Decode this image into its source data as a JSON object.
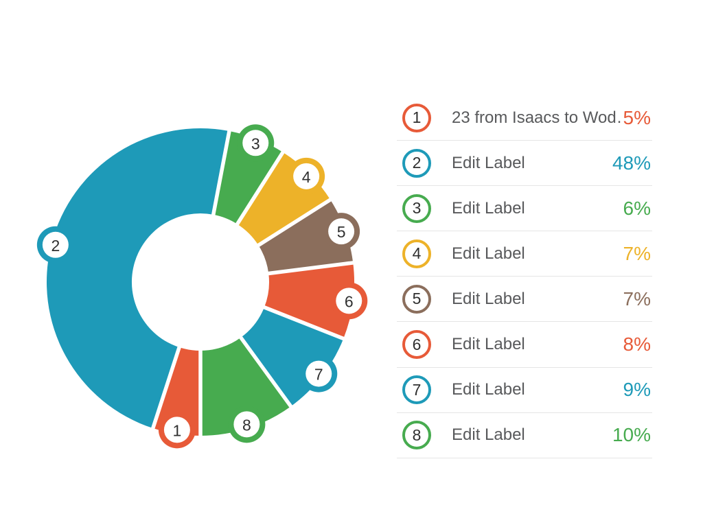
{
  "app": {
    "background_color": "#ffffff"
  },
  "legend": {
    "divider_color": "#e5e5e5",
    "label_color": "#58595b",
    "number_color": "#2f2f2f",
    "rows": [
      {
        "num": "1",
        "label": "23 from Isaacs to Wod…",
        "percent": "5%",
        "color": "#e75a38"
      },
      {
        "num": "2",
        "label": "Edit Label",
        "percent": "48%",
        "color": "#1e9ab8"
      },
      {
        "num": "3",
        "label": "Edit Label",
        "percent": "6%",
        "color": "#47ab4f"
      },
      {
        "num": "4",
        "label": "Edit Label",
        "percent": "7%",
        "color": "#edb229"
      },
      {
        "num": "5",
        "label": "Edit Label",
        "percent": "7%",
        "color": "#8b6e5c"
      },
      {
        "num": "6",
        "label": "Edit Label",
        "percent": "8%",
        "color": "#e75a38"
      },
      {
        "num": "7",
        "label": "Edit Label",
        "percent": "9%",
        "color": "#1e9ab8"
      },
      {
        "num": "8",
        "label": "Edit Label",
        "percent": "10%",
        "color": "#47ab4f"
      }
    ]
  },
  "chart_data": {
    "type": "pie",
    "variant": "donut",
    "title": "",
    "categories": [
      "23 from Isaacs to Wod…",
      "Edit Label",
      "Edit Label",
      "Edit Label",
      "Edit Label",
      "Edit Label",
      "Edit Label",
      "Edit Label"
    ],
    "slice_numbers": [
      "1",
      "2",
      "3",
      "4",
      "5",
      "6",
      "7",
      "8"
    ],
    "values": [
      5,
      48,
      6,
      7,
      7,
      8,
      9,
      10
    ],
    "unit": "%",
    "colors": [
      "#e75a38",
      "#1e9ab8",
      "#47ab4f",
      "#edb229",
      "#8b6e5c",
      "#e75a38",
      "#1e9ab8",
      "#47ab4f"
    ],
    "start_angle_deg": 180,
    "direction": "clockwise",
    "gap_color": "#ffffff",
    "legend_position": "right"
  }
}
